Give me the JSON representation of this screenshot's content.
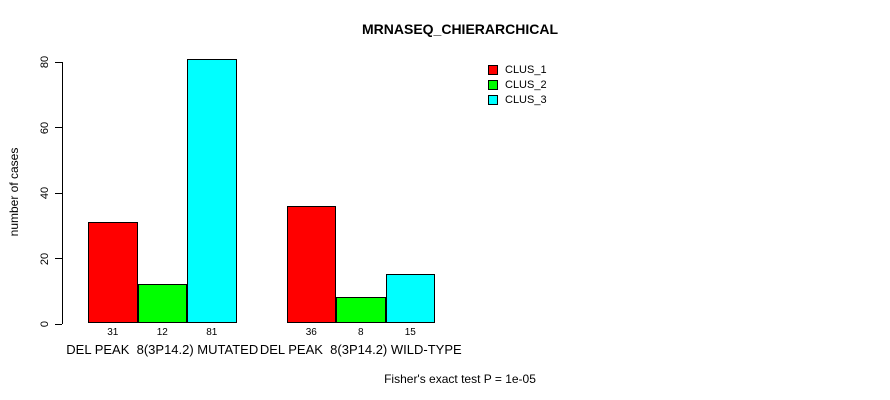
{
  "title": "MRNASEQ_CHIERARCHICAL",
  "ylabel": "number of cases",
  "footnote": "Fisher's exact test P = 1e-05",
  "colors": {
    "background": "#ffffff",
    "axis": "#000000",
    "text": "#000000"
  },
  "chart_data": {
    "type": "bar",
    "title": "MRNASEQ_CHIERARCHICAL",
    "xlabel": "",
    "ylabel": "number of cases",
    "categories": [
      "DEL PEAK  8(3P14.2) MUTATED",
      "DEL PEAK  8(3P14.2) WILD-TYPE"
    ],
    "series": [
      {
        "name": "CLUS_1",
        "color": "#ff0000",
        "values": [
          31,
          36
        ]
      },
      {
        "name": "CLUS_2",
        "color": "#00ff00",
        "values": [
          12,
          8
        ]
      },
      {
        "name": "CLUS_3",
        "color": "#00ffff",
        "values": [
          81,
          15
        ]
      }
    ],
    "bar_value_labels": [
      [
        "31",
        "12",
        "81"
      ],
      [
        "36",
        "8",
        "15"
      ]
    ],
    "yticks": [
      0,
      20,
      40,
      60,
      80
    ],
    "ylim": [
      0,
      81
    ],
    "grid": false,
    "legend_position": "top-right",
    "legend_entries": [
      "CLUS_1",
      "CLUS_2",
      "CLUS_3"
    ],
    "annotation": "Fisher's exact test P = 1e-05"
  }
}
